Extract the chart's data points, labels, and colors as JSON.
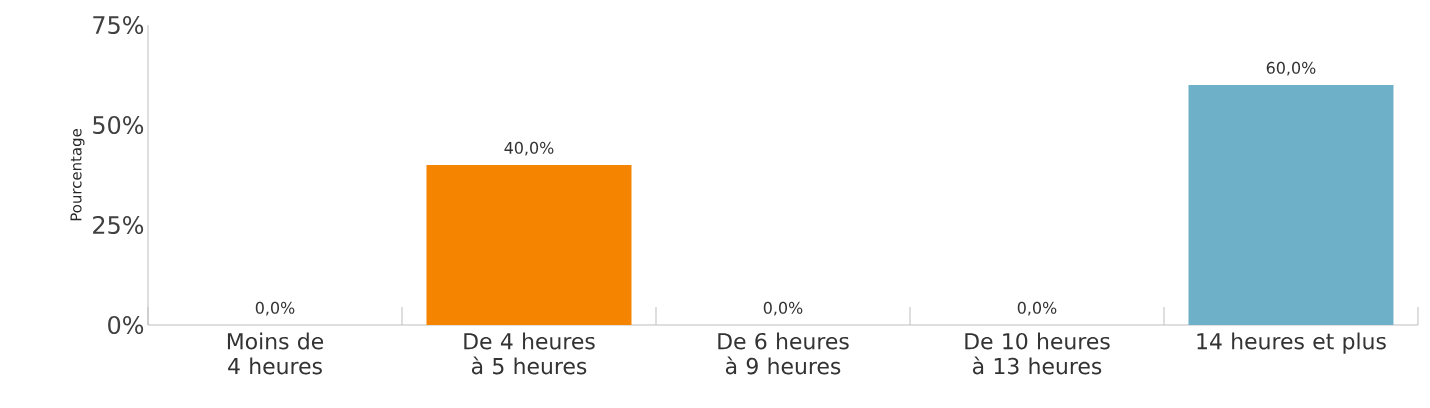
{
  "chart_data": {
    "type": "bar",
    "ylabel": "Pourcentage",
    "categories": [
      "Moins de 4 heures",
      "De 4 heures à 5 heures",
      "De 6 heures à 9 heures",
      "De 10 heures à 13 heures",
      "14 heures et plus"
    ],
    "values": [
      0,
      40,
      0,
      0,
      60
    ],
    "colors": [
      "#6fb0c9",
      "#f58400",
      "#6fb0c9",
      "#6fb0c9",
      "#6fb0c9"
    ],
    "value_labels": [
      "0,0%",
      "40,0%",
      "0,0%",
      "0,0%",
      "60,0%"
    ],
    "ylim": [
      0,
      75
    ],
    "yticks": [
      {
        "value": 0,
        "label": "0%"
      },
      {
        "value": 25,
        "label": "25%"
      },
      {
        "value": 50,
        "label": "50%"
      },
      {
        "value": 75,
        "label": "75%"
      }
    ],
    "grid": false
  }
}
